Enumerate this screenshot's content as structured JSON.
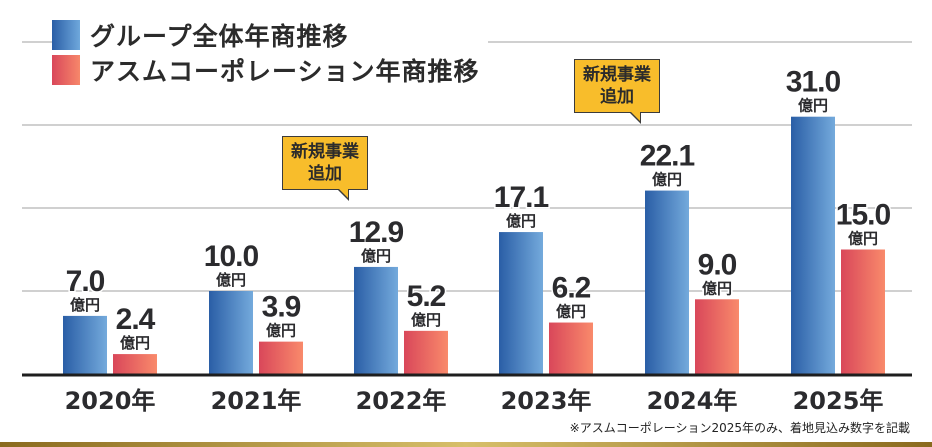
{
  "legend": [
    {
      "label": "グループ全体年商推移",
      "color_from": "#2a5ea6",
      "color_to": "#6fa8dc"
    },
    {
      "label": "アスムコーポレーション年商推移",
      "color_from": "#d9475a",
      "color_to": "#f7876a"
    }
  ],
  "callouts": [
    {
      "text_line1": "新規事業",
      "text_line2": "追加",
      "category": "2022年"
    },
    {
      "text_line1": "新規事業",
      "text_line2": "追加",
      "category": "2024年"
    }
  ],
  "footnote": "※アスムコーポレーション2025年のみ、着地見込み数字を記載",
  "chart_data": {
    "type": "bar",
    "title": "",
    "xlabel": "",
    "ylabel": "",
    "unit_label": "億円",
    "categories": [
      "2020年",
      "2021年",
      "2022年",
      "2023年",
      "2024年",
      "2025年"
    ],
    "series": [
      {
        "name": "グループ全体年商推移",
        "values": [
          7.0,
          10.0,
          12.9,
          17.1,
          22.1,
          31.0
        ],
        "color": "#3f7cc0"
      },
      {
        "name": "アスムコーポレーション年商推移",
        "values": [
          2.4,
          3.9,
          5.2,
          6.2,
          9.0,
          15.0
        ],
        "color": "#eb6a63"
      }
    ],
    "ylim": [
      0,
      40
    ],
    "gridlines": [
      10,
      20,
      30,
      40
    ],
    "grid": true,
    "legend_position": "top-left"
  }
}
